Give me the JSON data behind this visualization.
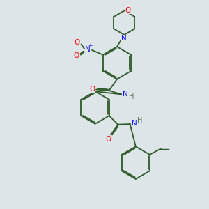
{
  "background_color": "#dde5e8",
  "bond_color": "#2d5a27",
  "atom_colors": {
    "N": "#1414ff",
    "O": "#ff0000",
    "C": "#2d5a27",
    "H": "#5a7a5a"
  },
  "line_width": 1.3,
  "dbo": 0.055,
  "figsize": [
    3.0,
    3.0
  ],
  "dpi": 100
}
